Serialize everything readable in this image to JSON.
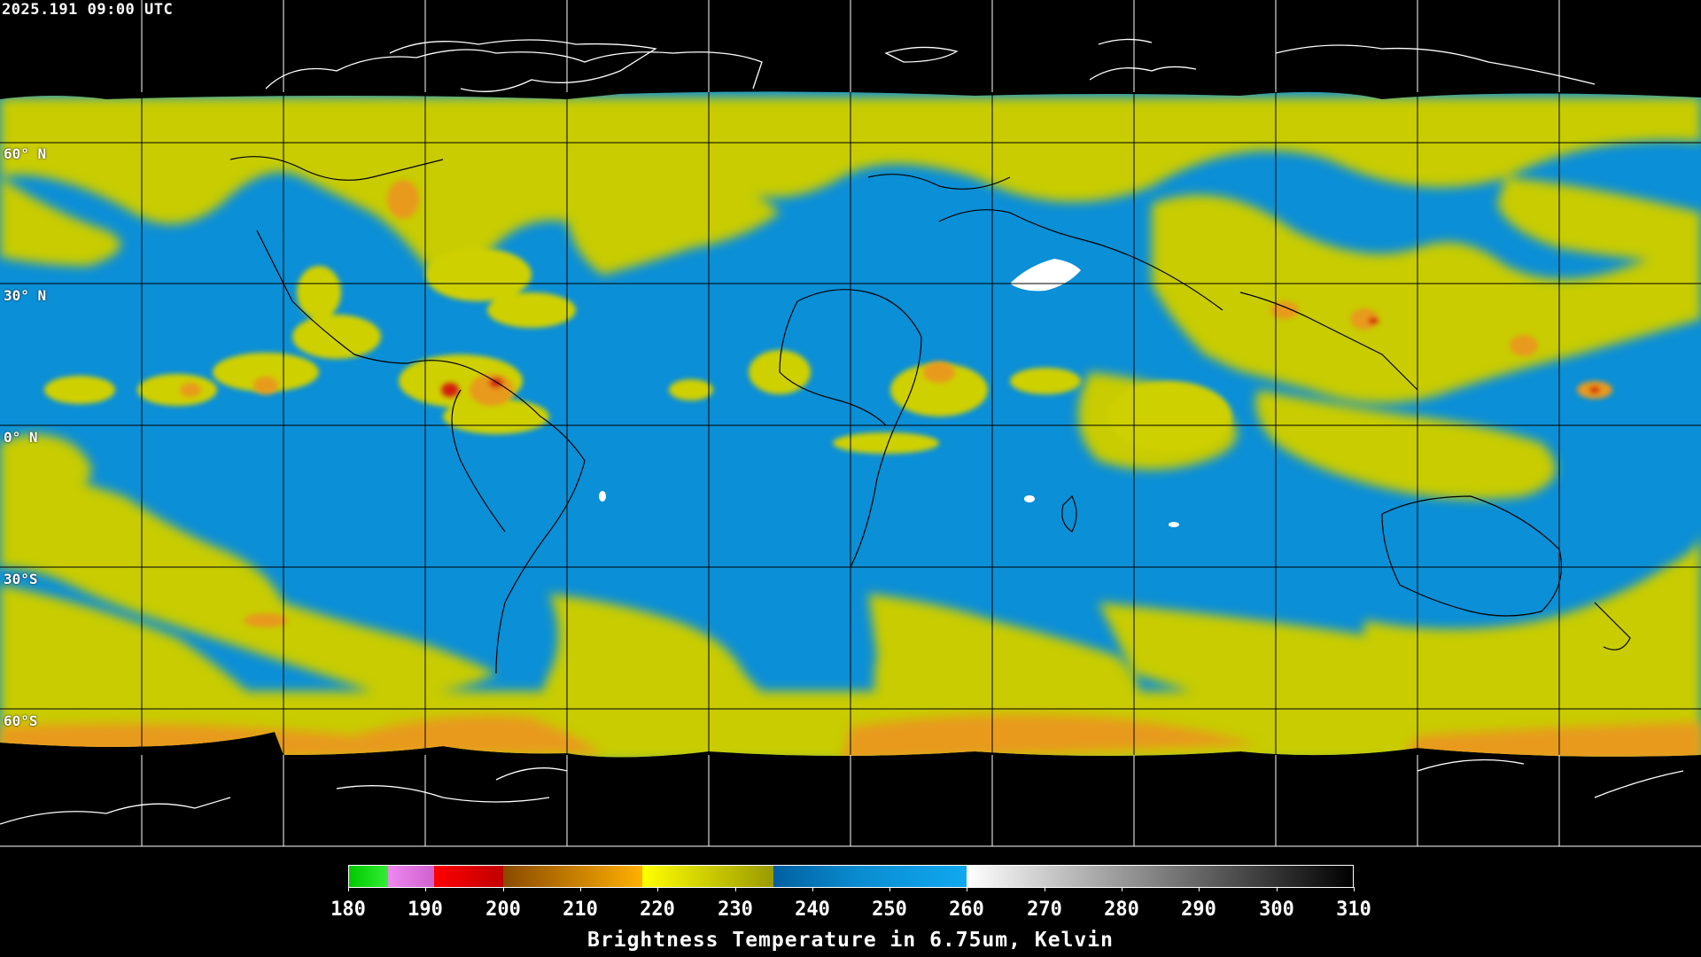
{
  "header": {
    "timestamp": "2025.191 09:00 UTC"
  },
  "map": {
    "latitude_labels": [
      "60° N",
      "30° N",
      "0° N",
      "30°S",
      "60°S"
    ],
    "colors": {
      "background": "#000000",
      "clear_sky_blue": "#0b8fd6",
      "moist_yellow": "#d2d400",
      "cold_orange": "#e89a1a",
      "deep_red": "#d41a10",
      "grid_line": "#000000",
      "coast_line": "#000000",
      "polar_coast_line": "#ffffff"
    }
  },
  "colorbar": {
    "title": "Brightness Temperature in 6.75um, Kelvin",
    "tick_labels": [
      "180",
      "190",
      "200",
      "210",
      "220",
      "230",
      "240",
      "250",
      "260",
      "270",
      "280",
      "290",
      "300",
      "310"
    ],
    "range_kelvin": [
      180,
      310
    ],
    "segments": [
      {
        "from": 180,
        "to": 185,
        "color_start": "#00c800",
        "color_end": "#33ee33"
      },
      {
        "from": 185,
        "to": 191,
        "color_start": "#ee88ee",
        "color_end": "#d060d0"
      },
      {
        "from": 191,
        "to": 200,
        "color_start": "#ff0000",
        "color_end": "#c00000"
      },
      {
        "from": 200,
        "to": 218,
        "color_start": "#8a4a00",
        "color_end": "#ffb000"
      },
      {
        "from": 218,
        "to": 235,
        "color_start": "#ffff00",
        "color_end": "#9a9a00"
      },
      {
        "from": 235,
        "to": 246,
        "color_start": "#0060a0",
        "color_end": "#0a8cd0"
      },
      {
        "from": 246,
        "to": 260,
        "color_start": "#0a8cd0",
        "color_end": "#10a8f0"
      },
      {
        "from": 260,
        "to": 310,
        "color_start": "#ffffff",
        "color_end": "#000000"
      }
    ]
  }
}
